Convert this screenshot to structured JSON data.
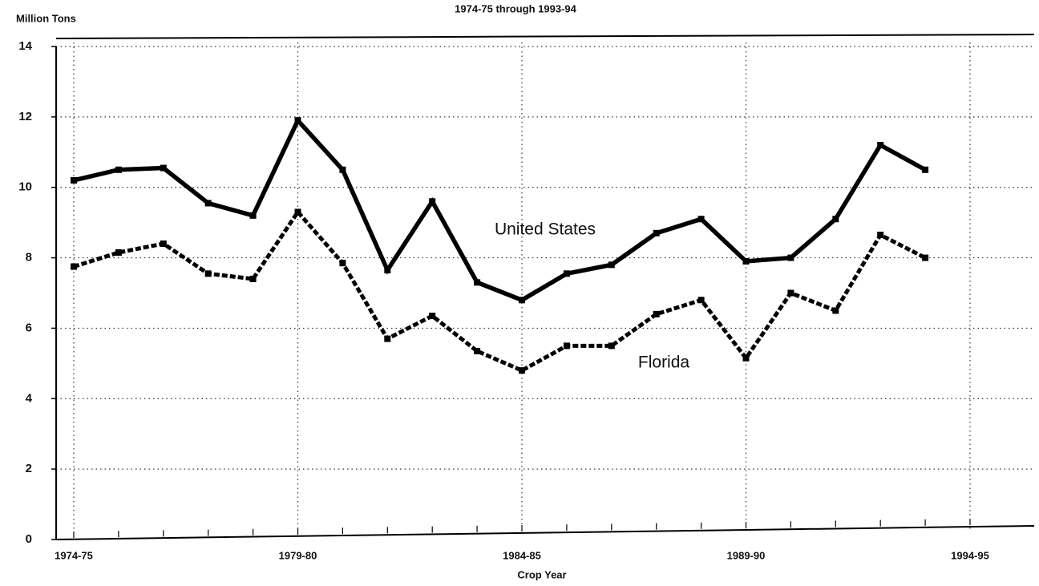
{
  "chart_data": {
    "type": "line",
    "title": "1974-75 through 1993-94",
    "y_label": "Million Tons",
    "x_label": "Crop Year",
    "categories": [
      "1974-75",
      null,
      null,
      null,
      null,
      "1979-80",
      null,
      null,
      null,
      null,
      "1984-85",
      null,
      null,
      null,
      null,
      "1989-90",
      null,
      null,
      null,
      null,
      "1994-95"
    ],
    "series": [
      {
        "name": "United States",
        "color": "#000000",
        "dashed": false,
        "values": [
          10.2,
          10.5,
          10.55,
          9.55,
          9.2,
          11.9,
          10.5,
          7.65,
          9.6,
          7.3,
          6.8,
          7.55,
          7.8,
          8.7,
          9.1,
          7.9,
          8.0,
          9.1,
          11.2,
          10.5,
          null
        ]
      },
      {
        "name": "Florida",
        "color": "#000000",
        "dashed": true,
        "values": [
          7.75,
          8.15,
          8.4,
          7.55,
          7.4,
          9.3,
          7.85,
          5.7,
          6.35,
          5.35,
          4.8,
          5.5,
          5.5,
          6.4,
          6.8,
          5.15,
          7.0,
          6.5,
          8.65,
          8.0,
          null
        ]
      }
    ],
    "ylim": [
      0,
      14
    ],
    "yticks": [
      0,
      2,
      4,
      6,
      8,
      10,
      12,
      14
    ],
    "grid": true
  }
}
